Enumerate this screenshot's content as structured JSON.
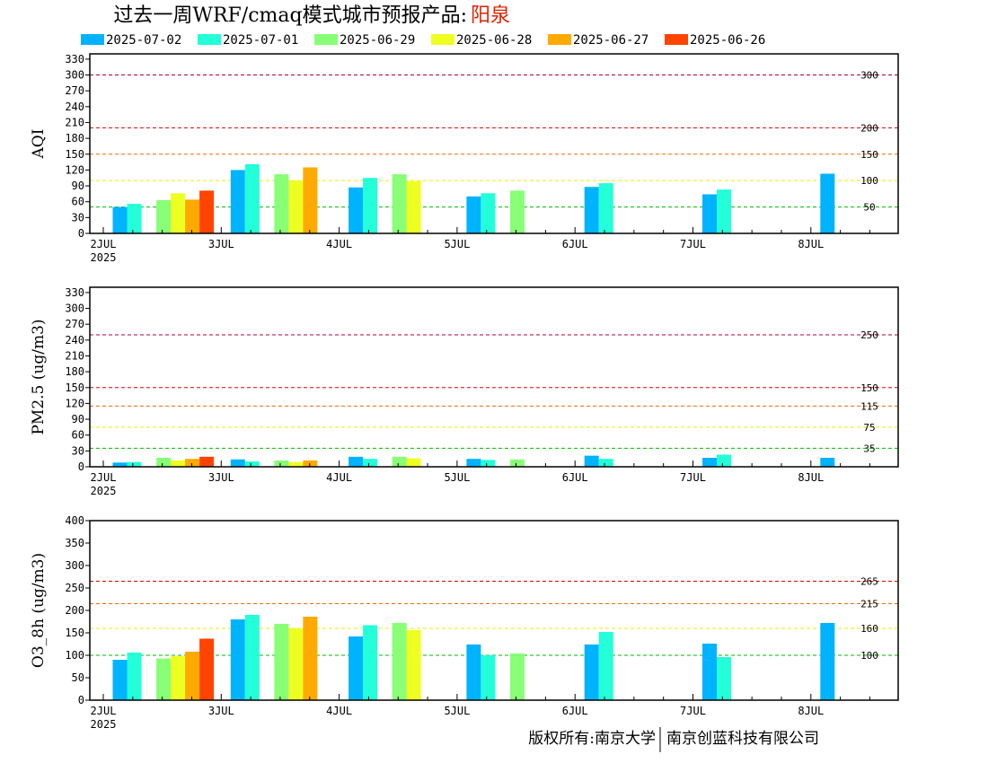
{
  "title": {
    "main": "过去一周WRF/cmaq模式城市预报产品:",
    "city": "阳泉"
  },
  "legend": [
    {
      "label": "2025-07-02",
      "color": "#00b3ff"
    },
    {
      "label": "2025-07-01",
      "color": "#22ffd9"
    },
    {
      "label": "2025-06-29",
      "color": "#88ff77"
    },
    {
      "label": "2025-06-28",
      "color": "#eeff22"
    },
    {
      "label": "2025-06-27",
      "color": "#ffaa00"
    },
    {
      "label": "2025-06-26",
      "color": "#ff4400"
    }
  ],
  "footer": {
    "left": "版权所有:南京大学",
    "right": "南京创蓝科技有限公司"
  },
  "chart_data": [
    {
      "type": "bar",
      "ylabel": "AQI",
      "ylim": [
        0,
        340
      ],
      "yticks": [
        0,
        30,
        60,
        90,
        120,
        150,
        180,
        210,
        240,
        270,
        300,
        330
      ],
      "xticks": [
        "2JUL",
        "3JUL",
        "4JUL",
        "5JUL",
        "6JUL",
        "7JUL",
        "8JUL"
      ],
      "xyear": "2025",
      "thresholds": [
        {
          "value": 300,
          "label": "300",
          "color": "#aa0044"
        },
        {
          "value": 200,
          "label": "200",
          "color": "#dd0000"
        },
        {
          "value": 150,
          "label": "150",
          "color": "#ff6600"
        },
        {
          "value": 100,
          "label": "100",
          "color": "#eeee00"
        },
        {
          "value": 50,
          "label": "50",
          "color": "#00bb00"
        }
      ],
      "groups": [
        {
          "x": 0.08,
          "bars": [
            {
              "series": 0,
              "value": 50
            },
            {
              "series": 1,
              "value": 56
            }
          ]
        },
        {
          "x": 0.45,
          "bars": [
            {
              "series": 2,
              "value": 63
            },
            {
              "series": 3,
              "value": 76
            },
            {
              "series": 4,
              "value": 64
            },
            {
              "series": 5,
              "value": 81
            }
          ]
        },
        {
          "x": 1.08,
          "bars": [
            {
              "series": 0,
              "value": 120
            },
            {
              "series": 1,
              "value": 131
            }
          ]
        },
        {
          "x": 1.45,
          "bars": [
            {
              "series": 2,
              "value": 112
            },
            {
              "series": 3,
              "value": 100
            },
            {
              "series": 4,
              "value": 125
            }
          ]
        },
        {
          "x": 2.08,
          "bars": [
            {
              "series": 0,
              "value": 87
            },
            {
              "series": 1,
              "value": 105
            }
          ]
        },
        {
          "x": 2.45,
          "bars": [
            {
              "series": 2,
              "value": 112
            },
            {
              "series": 3,
              "value": 99
            }
          ]
        },
        {
          "x": 3.08,
          "bars": [
            {
              "series": 0,
              "value": 70
            },
            {
              "series": 1,
              "value": 76
            }
          ]
        },
        {
          "x": 3.45,
          "bars": [
            {
              "series": 2,
              "value": 81
            }
          ]
        },
        {
          "x": 4.08,
          "bars": [
            {
              "series": 0,
              "value": 88
            },
            {
              "series": 1,
              "value": 95
            }
          ]
        },
        {
          "x": 5.08,
          "bars": [
            {
              "series": 0,
              "value": 74
            },
            {
              "series": 1,
              "value": 83
            }
          ]
        },
        {
          "x": 6.08,
          "bars": [
            {
              "series": 0,
              "value": 113
            }
          ]
        }
      ]
    },
    {
      "type": "bar",
      "ylabel": "PM2.5 (ug/m3)",
      "ylim": [
        0,
        340
      ],
      "yticks": [
        0,
        30,
        60,
        90,
        120,
        150,
        180,
        210,
        240,
        270,
        300,
        330
      ],
      "xticks": [
        "2JUL",
        "3JUL",
        "4JUL",
        "5JUL",
        "6JUL",
        "7JUL",
        "8JUL"
      ],
      "xyear": "2025",
      "thresholds": [
        {
          "value": 250,
          "label": "250",
          "color": "#aa0044"
        },
        {
          "value": 150,
          "label": "150",
          "color": "#dd0000"
        },
        {
          "value": 115,
          "label": "115",
          "color": "#ff6600"
        },
        {
          "value": 75,
          "label": "75",
          "color": "#eeee00"
        },
        {
          "value": 35,
          "label": "35",
          "color": "#00bb00"
        }
      ],
      "groups": [
        {
          "x": 0.08,
          "bars": [
            {
              "series": 0,
              "value": 8
            },
            {
              "series": 1,
              "value": 9
            }
          ]
        },
        {
          "x": 0.45,
          "bars": [
            {
              "series": 2,
              "value": 17
            },
            {
              "series": 3,
              "value": 12
            },
            {
              "series": 4,
              "value": 15
            },
            {
              "series": 5,
              "value": 19
            }
          ]
        },
        {
          "x": 1.08,
          "bars": [
            {
              "series": 0,
              "value": 14
            },
            {
              "series": 1,
              "value": 10
            }
          ]
        },
        {
          "x": 1.45,
          "bars": [
            {
              "series": 2,
              "value": 12
            },
            {
              "series": 3,
              "value": 9
            },
            {
              "series": 4,
              "value": 12
            }
          ]
        },
        {
          "x": 2.08,
          "bars": [
            {
              "series": 0,
              "value": 19
            },
            {
              "series": 1,
              "value": 15
            }
          ]
        },
        {
          "x": 2.45,
          "bars": [
            {
              "series": 2,
              "value": 19
            },
            {
              "series": 3,
              "value": 16
            }
          ]
        },
        {
          "x": 3.08,
          "bars": [
            {
              "series": 0,
              "value": 15
            },
            {
              "series": 1,
              "value": 13
            }
          ]
        },
        {
          "x": 3.45,
          "bars": [
            {
              "series": 2,
              "value": 14
            }
          ]
        },
        {
          "x": 4.08,
          "bars": [
            {
              "series": 0,
              "value": 21
            },
            {
              "series": 1,
              "value": 15
            }
          ]
        },
        {
          "x": 5.08,
          "bars": [
            {
              "series": 0,
              "value": 17
            },
            {
              "series": 1,
              "value": 23
            }
          ]
        },
        {
          "x": 6.08,
          "bars": [
            {
              "series": 0,
              "value": 17
            }
          ]
        }
      ]
    },
    {
      "type": "bar",
      "ylabel": "O3_8h (ug/m3)",
      "ylim": [
        0,
        400
      ],
      "yticks": [
        0,
        50,
        100,
        150,
        200,
        250,
        300,
        350,
        400
      ],
      "xticks": [
        "2JUL",
        "3JUL",
        "4JUL",
        "5JUL",
        "6JUL",
        "7JUL",
        "8JUL"
      ],
      "xyear": "2025",
      "thresholds": [
        {
          "value": 265,
          "label": "265",
          "color": "#dd0000"
        },
        {
          "value": 215,
          "label": "215",
          "color": "#ff6600"
        },
        {
          "value": 160,
          "label": "160",
          "color": "#eeee00"
        },
        {
          "value": 100,
          "label": "100",
          "color": "#00bb00"
        }
      ],
      "groups": [
        {
          "x": 0.08,
          "bars": [
            {
              "series": 0,
              "value": 90
            },
            {
              "series": 1,
              "value": 106
            }
          ]
        },
        {
          "x": 0.45,
          "bars": [
            {
              "series": 2,
              "value": 93
            },
            {
              "series": 3,
              "value": 98
            },
            {
              "series": 4,
              "value": 108
            },
            {
              "series": 5,
              "value": 137
            }
          ]
        },
        {
          "x": 1.08,
          "bars": [
            {
              "series": 0,
              "value": 180
            },
            {
              "series": 1,
              "value": 190
            }
          ]
        },
        {
          "x": 1.45,
          "bars": [
            {
              "series": 2,
              "value": 170
            },
            {
              "series": 3,
              "value": 160
            },
            {
              "series": 4,
              "value": 186
            }
          ]
        },
        {
          "x": 2.08,
          "bars": [
            {
              "series": 0,
              "value": 142
            },
            {
              "series": 1,
              "value": 167
            }
          ]
        },
        {
          "x": 2.45,
          "bars": [
            {
              "series": 2,
              "value": 172
            },
            {
              "series": 3,
              "value": 156
            }
          ]
        },
        {
          "x": 3.08,
          "bars": [
            {
              "series": 0,
              "value": 124
            },
            {
              "series": 1,
              "value": 100
            }
          ]
        },
        {
          "x": 3.45,
          "bars": [
            {
              "series": 2,
              "value": 104
            }
          ]
        },
        {
          "x": 4.08,
          "bars": [
            {
              "series": 0,
              "value": 124
            },
            {
              "series": 1,
              "value": 152
            }
          ]
        },
        {
          "x": 5.08,
          "bars": [
            {
              "series": 0,
              "value": 126
            },
            {
              "series": 1,
              "value": 96
            }
          ]
        },
        {
          "x": 6.08,
          "bars": [
            {
              "series": 0,
              "value": 172
            }
          ]
        }
      ]
    }
  ]
}
